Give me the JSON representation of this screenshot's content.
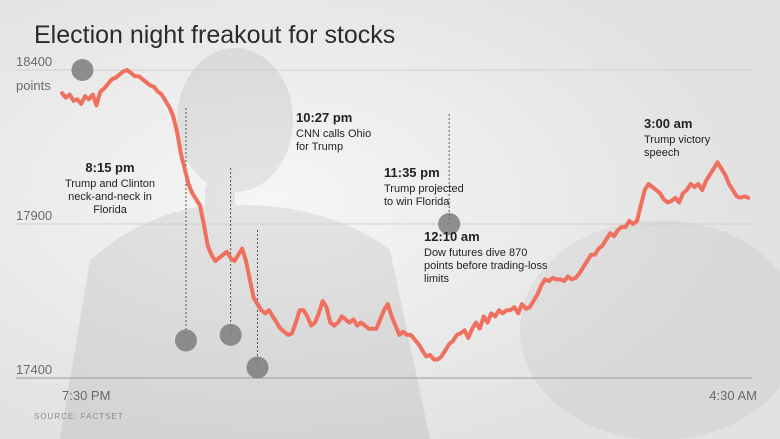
{
  "chart_data": {
    "type": "line",
    "title": "Election night freakout for stocks",
    "y_ticks": [
      {
        "value": 18400,
        "label": "18400"
      },
      {
        "value": 17900,
        "label": "17900"
      },
      {
        "value": 17400,
        "label": "17400"
      }
    ],
    "y_unit_label": "points",
    "ylim": [
      17400,
      18400
    ],
    "x_ticks": [
      {
        "x": 0,
        "label": "7:30 PM"
      },
      {
        "x": 540,
        "label": "4:30 AM"
      }
    ],
    "x_unit": "minutes after 7:30 PM",
    "xlim": [
      0,
      540
    ],
    "grid": true,
    "line_color": "#f07060",
    "series": [
      {
        "name": "",
        "x": [
          0,
          3,
          6,
          9,
          12,
          15,
          18,
          21,
          24,
          27,
          30,
          33,
          36,
          39,
          42,
          45,
          48,
          51,
          54,
          57,
          60,
          63,
          66,
          69,
          72,
          75,
          78,
          81,
          84,
          87,
          90,
          93,
          96,
          99,
          102,
          105,
          108,
          111,
          114,
          117,
          120,
          123,
          126,
          129,
          132,
          135,
          138,
          141,
          144,
          147,
          150,
          153,
          156,
          159,
          162,
          165,
          168,
          171,
          174,
          177,
          180,
          183,
          186,
          189,
          192,
          195,
          198,
          201,
          204,
          207,
          210,
          213,
          216,
          219,
          222,
          225,
          228,
          231,
          234,
          237,
          240,
          243,
          246,
          249,
          252,
          255,
          258,
          261,
          264,
          267,
          270,
          273,
          276,
          279,
          282,
          285,
          288,
          291,
          294,
          297,
          300,
          303,
          306,
          309,
          312,
          315,
          318,
          321,
          324,
          327,
          330,
          333,
          336,
          339,
          342,
          345,
          348,
          351,
          354,
          357,
          360,
          363,
          366,
          369,
          372,
          375,
          378,
          381,
          384,
          387,
          390,
          393,
          396,
          399,
          402,
          405,
          408,
          411,
          414,
          417,
          420,
          423,
          426,
          429,
          432,
          435,
          438,
          441,
          444,
          447,
          450,
          453,
          456,
          459,
          462,
          465,
          468,
          471,
          474,
          477,
          480,
          483,
          486,
          489,
          492,
          495,
          498,
          501,
          504,
          507,
          510,
          513,
          516,
          519,
          522,
          525,
          528,
          531,
          534,
          537
        ],
        "values": [
          18325,
          18310,
          18320,
          18300,
          18305,
          18290,
          18315,
          18305,
          18320,
          18285,
          18330,
          18340,
          18355,
          18370,
          18375,
          18385,
          18395,
          18400,
          18390,
          18380,
          18380,
          18370,
          18360,
          18350,
          18345,
          18330,
          18320,
          18300,
          18280,
          18250,
          18200,
          18130,
          18080,
          18030,
          18000,
          17980,
          17960,
          17900,
          17830,
          17800,
          17780,
          17790,
          17800,
          17810,
          17790,
          17780,
          17800,
          17820,
          17780,
          17720,
          17660,
          17640,
          17620,
          17610,
          17620,
          17600,
          17580,
          17560,
          17550,
          17540,
          17545,
          17580,
          17620,
          17620,
          17600,
          17570,
          17580,
          17610,
          17650,
          17630,
          17580,
          17570,
          17580,
          17600,
          17590,
          17580,
          17590,
          17570,
          17580,
          17570,
          17560,
          17560,
          17560,
          17590,
          17620,
          17640,
          17600,
          17570,
          17540,
          17550,
          17540,
          17540,
          17525,
          17510,
          17490,
          17470,
          17475,
          17460,
          17460,
          17470,
          17490,
          17510,
          17520,
          17540,
          17545,
          17555,
          17530,
          17560,
          17580,
          17560,
          17600,
          17580,
          17610,
          17600,
          17620,
          17610,
          17620,
          17620,
          17630,
          17610,
          17640,
          17625,
          17630,
          17650,
          17670,
          17700,
          17720,
          17715,
          17725,
          17720,
          17720,
          17715,
          17730,
          17720,
          17725,
          17740,
          17760,
          17780,
          17800,
          17800,
          17820,
          17830,
          17850,
          17870,
          17860,
          17880,
          17890,
          17890,
          17910,
          17900,
          17910,
          17960,
          18010,
          18030,
          18020,
          18010,
          18000,
          17980,
          17970,
          17975,
          17985,
          17970,
          18000,
          18010,
          18030,
          18020,
          18030,
          18010,
          18040,
          18060,
          18080,
          18100,
          18080,
          18060,
          18030,
          18010,
          17990,
          17985,
          17990,
          17985
        ]
      }
    ],
    "annotations": [
      {
        "x": 16,
        "y": 18400,
        "time": "8:15 pm",
        "lines": [
          "Trump and Clinton",
          "neck-and-neck in",
          "Florida"
        ]
      },
      {
        "x": 97,
        "y": 17522,
        "time": "10:27 pm",
        "lines": [
          "CNN calls Ohio",
          "for Trump"
        ]
      },
      {
        "x": 132,
        "y": 17540,
        "time": "11:35 pm",
        "lines": [
          "Trump projected",
          "to win Florida"
        ]
      },
      {
        "x": 153,
        "y": 17434,
        "time": "12:10 am",
        "lines": [
          "Dow futures dive 870",
          "points before trading-loss",
          "limits"
        ]
      },
      {
        "x": 303,
        "y": 17900,
        "time": "3:00 am",
        "lines": [
          "Trump victory",
          "speech"
        ]
      }
    ],
    "source": "SOURCE: FACTSET"
  }
}
